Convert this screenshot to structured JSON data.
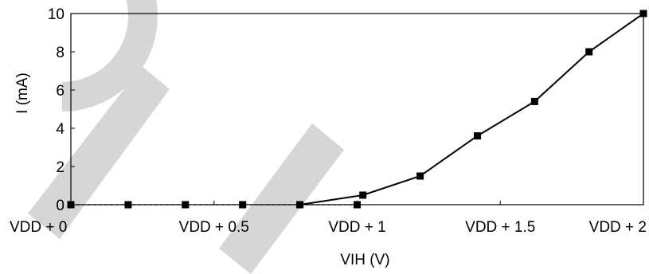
{
  "chart_data": {
    "type": "line",
    "title": "",
    "xlabel": "VIH (V)",
    "ylabel": "I (mA)",
    "x_ticks": [
      {
        "value": 0,
        "label": "VDD + 0"
      },
      {
        "value": 0.5,
        "label": "VDD + 0.5"
      },
      {
        "value": 1,
        "label": "VDD + 1"
      },
      {
        "value": 1.5,
        "label": "VDD + 1.5"
      },
      {
        "value": 2,
        "label": "VDD + 2"
      }
    ],
    "y_ticks": [
      {
        "value": 0,
        "label": "0"
      },
      {
        "value": 2,
        "label": "2"
      },
      {
        "value": 4,
        "label": "4"
      },
      {
        "value": 6,
        "label": "6"
      },
      {
        "value": 8,
        "label": "8"
      },
      {
        "value": 10,
        "label": "10"
      }
    ],
    "xlim": [
      0,
      2
    ],
    "ylim": [
      0,
      10
    ],
    "grid": false,
    "series": [
      {
        "x": [
          0,
          0.2,
          0.4,
          0.6,
          0.8,
          1.0
        ],
        "y": [
          0,
          0,
          0,
          0,
          0,
          0
        ],
        "line_style": "dashed",
        "color": "#000000",
        "marker": "square"
      },
      {
        "x": [
          0.8,
          1.02,
          1.22,
          1.42,
          1.62,
          1.81,
          2.0
        ],
        "y": [
          0,
          0.5,
          1.5,
          3.6,
          5.4,
          8.0,
          10.0
        ],
        "line_style": "solid",
        "color": "#000000",
        "marker": "square"
      }
    ]
  }
}
